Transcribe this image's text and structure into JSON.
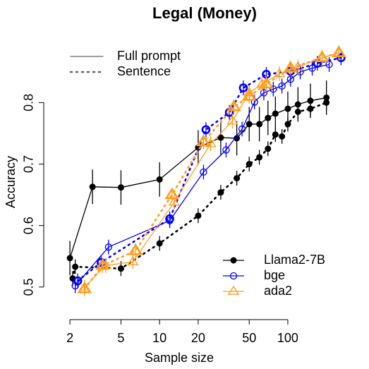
{
  "chart_data": {
    "type": "line",
    "title": "Legal (Money)",
    "xlabel": "Sample size",
    "ylabel": "Accuracy",
    "xscale": "log",
    "xlim": [
      1.25,
      290
    ],
    "ylim": [
      0.447,
      0.89
    ],
    "xticks": [
      2,
      5,
      10,
      20,
      50,
      100
    ],
    "yticks": [
      0.5,
      0.6,
      0.7,
      0.8
    ],
    "linetypes": [
      {
        "name": "Full prompt",
        "dash": "solid"
      },
      {
        "name": "Sentence",
        "dash": "dotted"
      }
    ],
    "series": [
      {
        "name": "Llama2-7B",
        "color": "#000000",
        "marker": "circle-filled",
        "lines": [
          {
            "x": [
              2,
              3,
              5,
              10,
              20,
              30,
              40,
              50,
              60,
              70,
              80,
              100,
              120,
              150,
              200
            ],
            "values": [
              0.547,
              0.663,
              0.662,
              0.675,
              0.727,
              0.743,
              0.742,
              0.765,
              0.765,
              0.775,
              0.782,
              0.79,
              0.797,
              0.803,
              0.808
            ],
            "error": 0.028
          },
          {
            "x": [
              2.1,
              2.2,
              5,
              10,
              20,
              30,
              40,
              50,
              60,
              70,
              80,
              90,
              100,
              120,
              150,
              200
            ],
            "values": [
              0.514,
              0.533,
              0.53,
              0.571,
              0.616,
              0.654,
              0.677,
              0.7,
              0.711,
              0.725,
              0.748,
              0.745,
              0.765,
              0.785,
              0.79,
              0.8
            ],
            "error": 0.012
          }
        ]
      },
      {
        "name": "bge",
        "color": "#0000ff",
        "marker": "circle-open",
        "lines": [
          {
            "x": [
              2.2,
              4,
              12,
              22,
              33,
              44,
              55,
              65,
              77,
              90,
              105,
              125,
              155,
              210
            ],
            "values": [
              0.502,
              0.565,
              0.608,
              0.687,
              0.723,
              0.757,
              0.801,
              0.816,
              0.822,
              0.827,
              0.838,
              0.85,
              0.856,
              0.862
            ],
            "error": 0.012
          },
          {
            "x": [
              2.3,
              3.5,
              12,
              23,
              35,
              45,
              68,
              105,
              170,
              260
            ],
            "values": [
              0.51,
              0.54,
              0.611,
              0.756,
              0.784,
              0.824,
              0.846,
              0.851,
              0.864,
              0.873
            ],
            "error": 0.012
          }
        ]
      },
      {
        "name": "ada2",
        "color": "#ff9c1a",
        "marker": "triangle-open",
        "lines": [
          {
            "x": [
              2.6,
              3.8,
              6.2,
              13,
              25,
              37,
              50,
              63,
              86,
              120,
              185,
              250
            ],
            "values": [
              0.5,
              0.535,
              0.541,
              0.638,
              0.733,
              0.77,
              0.816,
              0.83,
              0.847,
              0.858,
              0.873,
              0.881
            ],
            "error": 0.012
          },
          {
            "x": [
              2.6,
              3.6,
              6.5,
              12.5,
              22,
              38,
              50,
              68,
              105,
              185,
              250
            ],
            "values": [
              0.497,
              0.535,
              0.559,
              0.65,
              0.736,
              0.793,
              0.81,
              0.83,
              0.856,
              0.873,
              0.881
            ],
            "error": 0.012
          }
        ]
      }
    ]
  }
}
